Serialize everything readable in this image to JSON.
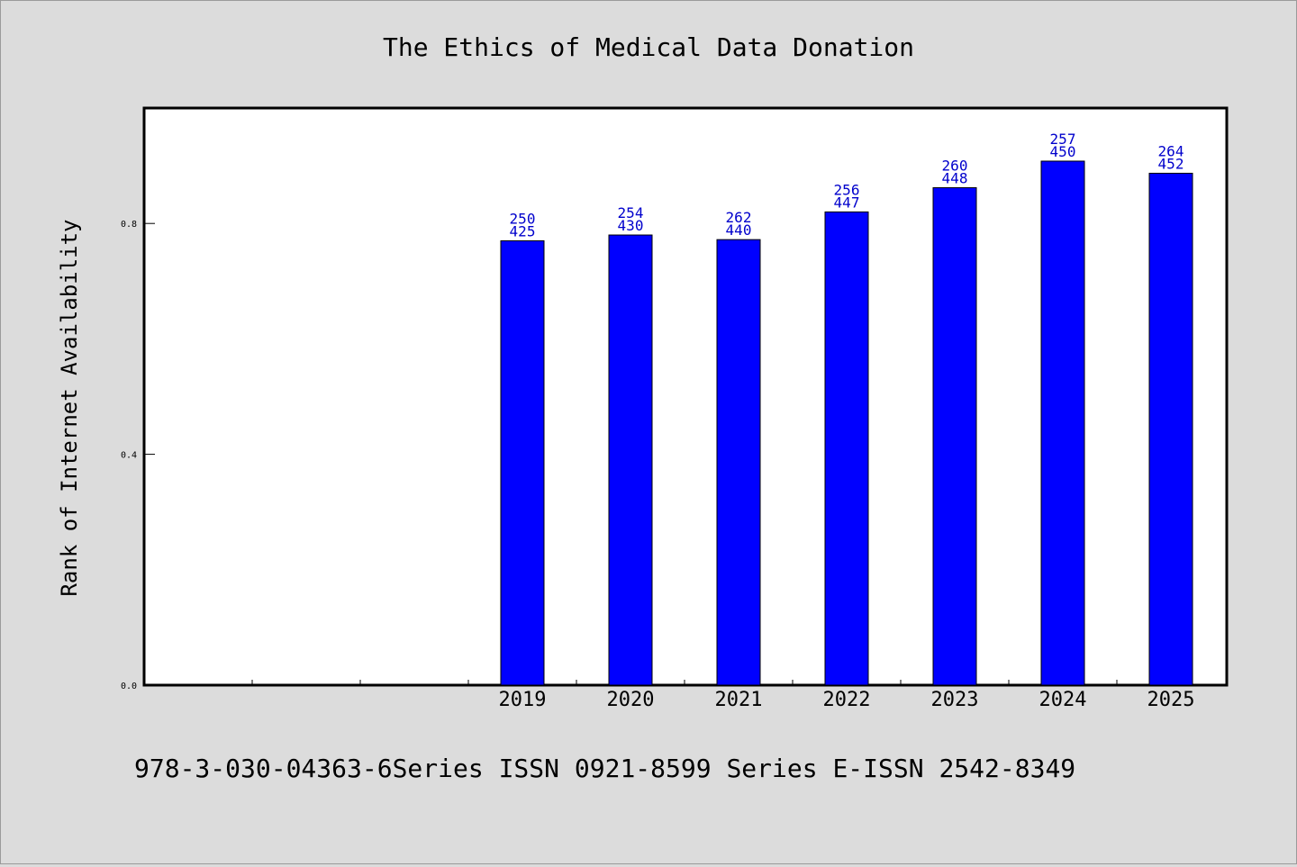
{
  "chart_data": {
    "type": "bar",
    "title": "The Ethics of Medical Data Donation",
    "xlabel": "",
    "ylabel": "Rank of Internet Availability",
    "categories": [
      "2019",
      "2020",
      "2021",
      "2022",
      "2023",
      "2024",
      "2025"
    ],
    "series": [
      {
        "values": [
          0.77,
          0.78,
          0.772,
          0.82,
          0.862,
          0.908,
          0.887
        ],
        "labels": [
          [
            "250",
            "425"
          ],
          [
            "254",
            "430"
          ],
          [
            "262",
            "440"
          ],
          [
            "256",
            "447"
          ],
          [
            "260",
            "448"
          ],
          [
            "257",
            "450"
          ],
          [
            "264",
            "452"
          ]
        ]
      }
    ],
    "ylim": [
      0,
      1.0
    ],
    "yticks": [
      "0.0",
      "0.4",
      "0.8"
    ],
    "ytick_values": [
      0.0,
      0.4,
      0.8
    ],
    "empty_leading_slots": 3,
    "grid": false,
    "colors": {
      "bar": "#0000ff",
      "label": "#0000cc"
    }
  },
  "footer": {
    "text": "978-3-030-04363-6Series ISSN 0921-8599 Series E-ISSN 2542-8349"
  }
}
